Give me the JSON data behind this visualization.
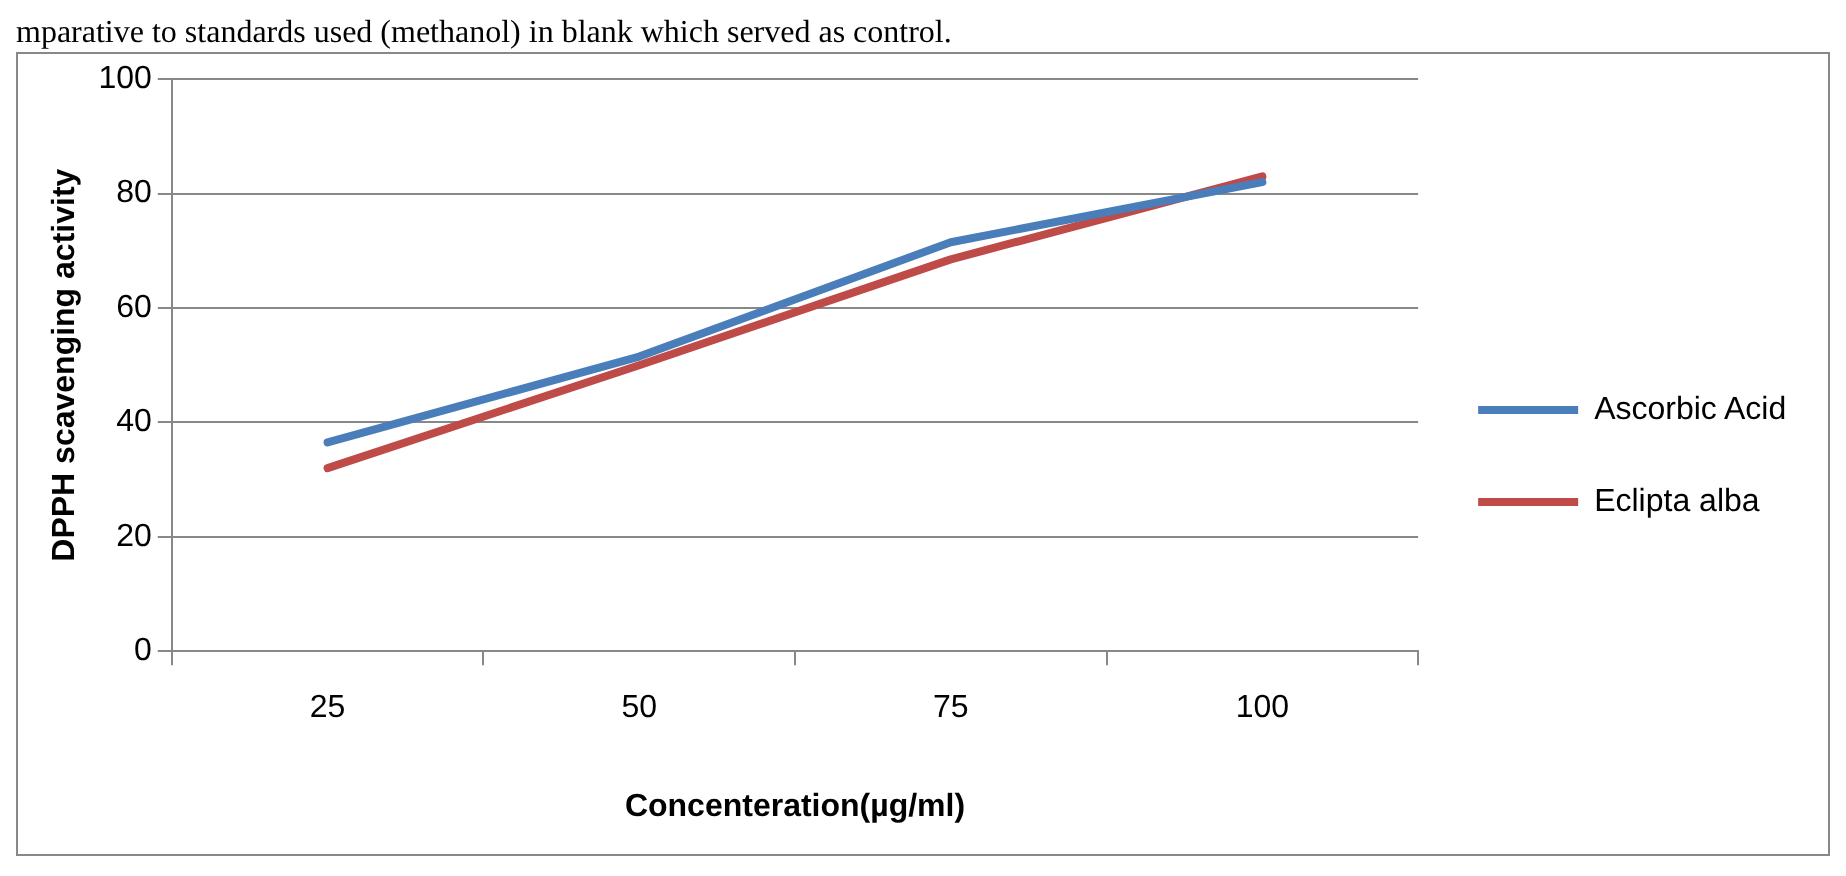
{
  "chart_data": {
    "type": "line",
    "xlabel": "Concenteration(µg/ml)",
    "ylabel": "DPPH scavenging activity",
    "annotations": [
      "mparative to standards used (methanol) in blank which served as control."
    ],
    "categories": [
      "25",
      "50",
      "75",
      "100"
    ],
    "series": [
      {
        "name": "Ascorbic Acid",
        "color": "#4a7ebb",
        "values": [
          36.5,
          51.5,
          71.5,
          82
        ]
      },
      {
        "name": "Eclipta alba",
        "color": "#be4b48",
        "values": [
          32,
          50,
          68.5,
          83
        ]
      }
    ],
    "ylim": [
      0,
      100
    ],
    "yticks": [
      0,
      20,
      40,
      60,
      80,
      100
    ],
    "grid": "y",
    "legend": "right",
    "marker": "none",
    "line_style": "solid"
  }
}
